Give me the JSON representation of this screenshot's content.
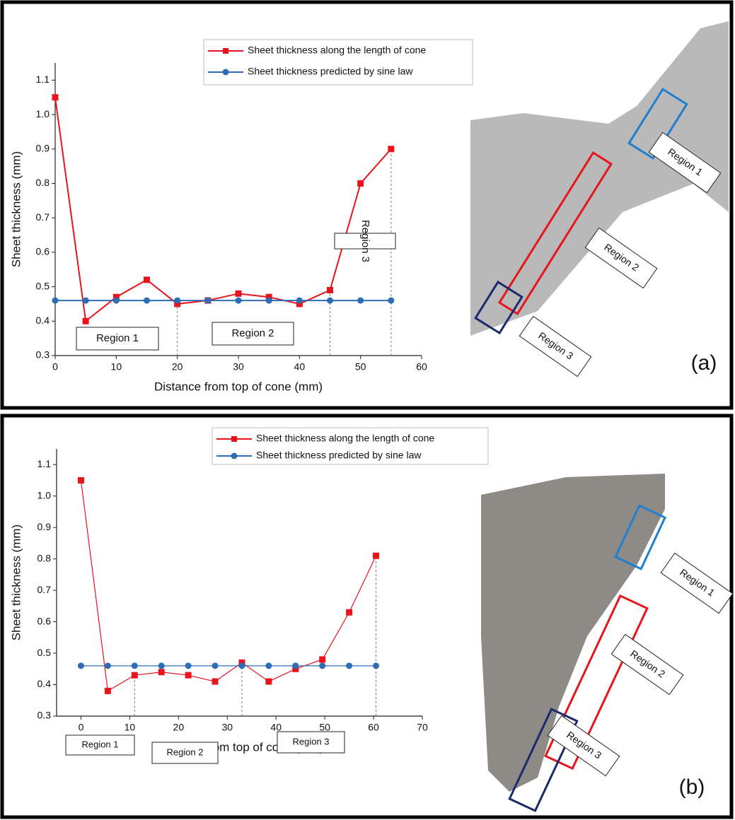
{
  "chart_data": [
    {
      "type": "line",
      "panel_label": "(a)",
      "xlabel": "Distance from top of cone (mm)",
      "ylabel": "Sheet thickness (mm)",
      "x": [
        0,
        5,
        10,
        15,
        20,
        25,
        30,
        35,
        40,
        45,
        50,
        55
      ],
      "series": [
        {
          "name": "Sheet thickness along the length of cone",
          "color": "#e8141c",
          "marker": "square",
          "values": [
            1.05,
            0.4,
            0.47,
            0.52,
            0.45,
            0.46,
            0.48,
            0.47,
            0.45,
            0.49,
            0.8,
            0.9
          ]
        },
        {
          "name": "Sheet thickness predicted by sine law",
          "color": "#2e6db4",
          "marker": "circle",
          "values": [
            0.46,
            0.46,
            0.46,
            0.46,
            0.46,
            0.46,
            0.46,
            0.46,
            0.46,
            0.46,
            0.46,
            0.46
          ]
        }
      ],
      "xlim": [
        0,
        60
      ],
      "xticks": [
        0,
        10,
        20,
        30,
        40,
        50,
        60
      ],
      "ylim": [
        0.3,
        1.15
      ],
      "yticks": [
        0.3,
        0.4,
        0.5,
        0.6,
        0.7,
        0.8,
        0.9,
        {
          "value": 1,
          "label": "1.0"
        },
        1.1
      ],
      "region_boundaries": [
        20,
        45,
        55
      ],
      "region_labels": [
        "Region 1",
        "Region 2",
        "Region 3"
      ],
      "photo_labels": [
        "Region 1",
        "Region 2",
        "Region 3"
      ]
    },
    {
      "type": "line",
      "panel_label": "(b)",
      "xlabel": "Distance from top of cone (mm)",
      "ylabel": "Sheet thickness (mm)",
      "x": [
        0,
        5.5,
        11,
        16.5,
        22,
        27.5,
        33,
        38.5,
        44,
        49.5,
        55,
        60.5
      ],
      "series": [
        {
          "name": "Sheet thickness along the length of cone",
          "color": "#e8141c",
          "marker": "square",
          "values": [
            1.05,
            0.38,
            0.43,
            0.44,
            0.43,
            0.41,
            0.47,
            0.41,
            0.45,
            0.48,
            0.63,
            0.81
          ]
        },
        {
          "name": "Sheet thickness predicted by sine law",
          "color": "#2e6db4",
          "marker": "circle",
          "values": [
            0.46,
            0.46,
            0.46,
            0.46,
            0.46,
            0.46,
            0.46,
            0.46,
            0.46,
            0.46,
            0.46,
            0.46
          ]
        }
      ],
      "xlim": [
        -5,
        70
      ],
      "xticks": [
        0,
        10,
        20,
        30,
        40,
        50,
        60,
        70
      ],
      "ylim": [
        0.3,
        1.15
      ],
      "yticks": [
        0.3,
        0.4,
        0.5,
        0.6,
        0.7,
        0.8,
        0.9,
        {
          "value": 1,
          "label": "1.0"
        },
        1.1
      ],
      "region_boundaries": [
        11,
        33,
        60.5
      ],
      "region_labels": [
        "Region 1",
        "Region 2",
        "Region 3"
      ],
      "photo_labels": [
        "Region 1",
        "Region 2",
        "Region 3"
      ]
    }
  ]
}
